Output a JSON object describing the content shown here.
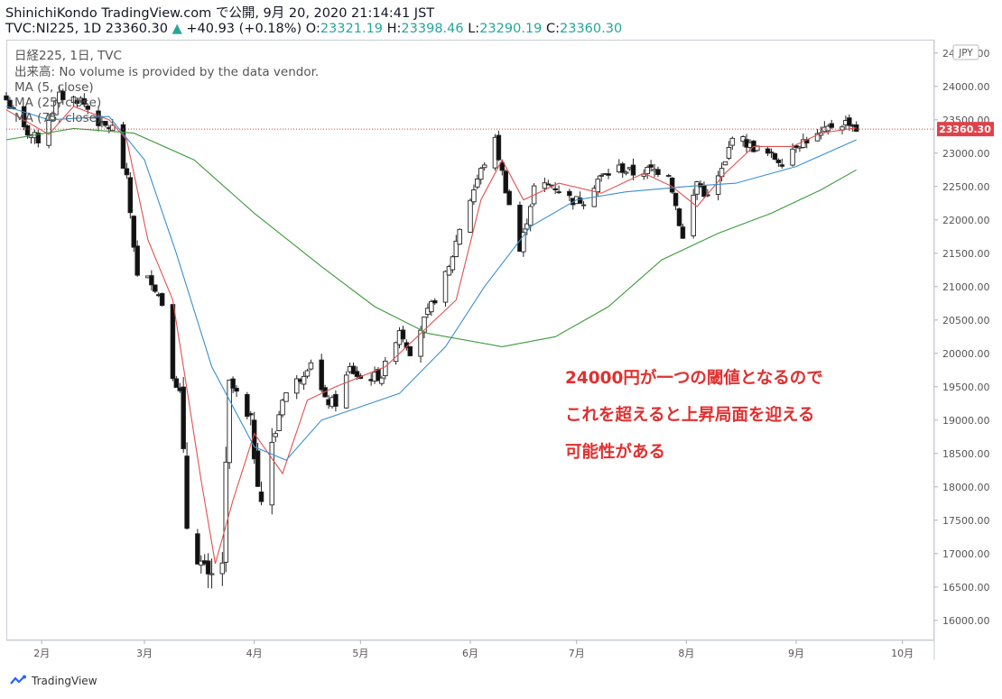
{
  "header": {
    "line1": "ShinichiKondo TradingView.com で公開, 9月 20, 2020 21:14:41 JST",
    "symbol": "TVC:NI225, 1D 23360.30",
    "change": "+40.93 (+0.18%)",
    "o_label": " O:",
    "o": "23321.19",
    "h_label": " H:",
    "h": "23398.46",
    "l_label": " L:",
    "l": "23290.19",
    "c_label": " C:",
    "c": "23360.30"
  },
  "legend": {
    "title": "日経225, 1日, TVC",
    "volume": "出来高: No volume is provided by the data vendor.",
    "ma5": "MA (5, close)",
    "ma25": "MA (25, close)",
    "ma75": "MA (75, close)"
  },
  "currency": "JPY",
  "annotation": {
    "line1": "24000円が一つの閾値となるので",
    "line2": "これを超えると上昇局面を迎える",
    "line3": "可能性がある"
  },
  "footer": {
    "brand": "TradingView"
  },
  "colors": {
    "up": "#26a69a",
    "ma5": "#e25050",
    "ma25": "#3a8fd1",
    "ma75": "#3c9a3c",
    "last_price": "#e0424a",
    "annotation": "#e03030"
  },
  "chart_data": {
    "type": "candlestick",
    "ylim": [
      15700,
      24700
    ],
    "yticks": [
      16000,
      16500,
      17000,
      17500,
      18000,
      18500,
      19000,
      19500,
      20000,
      20500,
      21000,
      21500,
      22000,
      22500,
      23000,
      23500,
      24000,
      24500
    ],
    "ytick_labels": [
      "16000.00",
      "16500.00",
      "17000.00",
      "17500.00",
      "18000.00",
      "18500.00",
      "19000.00",
      "19500.00",
      "20000.00",
      "20500.00",
      "21000.00",
      "21500.00",
      "22000.00",
      "22500.00",
      "23000.00",
      "23500.00",
      "24000.00",
      "24500.00"
    ],
    "x_labels": [
      "2月",
      "3月",
      "4月",
      "5月",
      "6月",
      "7月",
      "8月",
      "9月",
      "10月"
    ],
    "x_label_dates": [
      "2020-02-01",
      "2020-03-01",
      "2020-04-01",
      "2020-05-01",
      "2020-06-01",
      "2020-07-01",
      "2020-08-01",
      "2020-09-01",
      "2020-10-01"
    ],
    "x_range": [
      "2020-01-22",
      "2020-10-10"
    ],
    "last_price": 23360.3,
    "last_price_label": "23360.30",
    "candle_anchors": [
      [
        "2020-01-22",
        23800
      ],
      [
        "2020-01-27",
        23350
      ],
      [
        "2020-01-31",
        23200
      ],
      [
        "2020-02-06",
        23850
      ],
      [
        "2020-02-12",
        23800
      ],
      [
        "2020-02-18",
        23400
      ],
      [
        "2020-02-21",
        23380
      ],
      [
        "2020-02-25",
        22600
      ],
      [
        "2020-02-28",
        21140
      ],
      [
        "2020-03-03",
        21100
      ],
      [
        "2020-03-06",
        20750
      ],
      [
        "2020-03-09",
        19700
      ],
      [
        "2020-03-11",
        19400
      ],
      [
        "2020-03-13",
        17430
      ],
      [
        "2020-03-16",
        17000
      ],
      [
        "2020-03-19",
        16550
      ],
      [
        "2020-03-23",
        16890
      ],
      [
        "2020-03-25",
        19550
      ],
      [
        "2020-03-27",
        19390
      ],
      [
        "2020-03-31",
        18900
      ],
      [
        "2020-04-03",
        17820
      ],
      [
        "2020-04-06",
        18580
      ],
      [
        "2020-04-09",
        19350
      ],
      [
        "2020-04-14",
        19640
      ],
      [
        "2020-04-17",
        19900
      ],
      [
        "2020-04-21",
        19280
      ],
      [
        "2020-04-24",
        19260
      ],
      [
        "2020-04-28",
        19770
      ],
      [
        "2020-05-01",
        19620
      ],
      [
        "2020-05-07",
        19670
      ],
      [
        "2020-05-12",
        20370
      ],
      [
        "2020-05-15",
        20040
      ],
      [
        "2020-05-20",
        20600
      ],
      [
        "2020-05-26",
        21270
      ],
      [
        "2020-05-29",
        21880
      ],
      [
        "2020-06-03",
        22610
      ],
      [
        "2020-06-05",
        22860
      ],
      [
        "2020-06-08",
        23180
      ],
      [
        "2020-06-11",
        22470
      ],
      [
        "2020-06-15",
        21530
      ],
      [
        "2020-06-19",
        22480
      ],
      [
        "2020-06-24",
        22530
      ],
      [
        "2020-06-30",
        22290
      ],
      [
        "2020-07-03",
        22300
      ],
      [
        "2020-07-07",
        22610
      ],
      [
        "2020-07-13",
        22780
      ],
      [
        "2020-07-17",
        22700
      ],
      [
        "2020-07-22",
        22750
      ],
      [
        "2020-07-27",
        22720
      ],
      [
        "2020-07-31",
        21710
      ],
      [
        "2020-08-04",
        22570
      ],
      [
        "2020-08-07",
        22330
      ],
      [
        "2020-08-12",
        22840
      ],
      [
        "2020-08-14",
        23290
      ],
      [
        "2020-08-19",
        23110
      ],
      [
        "2020-08-24",
        22980
      ],
      [
        "2020-08-28",
        22880
      ],
      [
        "2020-09-01",
        23140
      ],
      [
        "2020-09-04",
        23200
      ],
      [
        "2020-09-08",
        23270
      ],
      [
        "2020-09-11",
        23410
      ],
      [
        "2020-09-16",
        23470
      ],
      [
        "2020-09-18",
        23360
      ]
    ],
    "ma_series": [
      {
        "name": "MA (5, close)",
        "points": [
          [
            "2020-01-22",
            23650
          ],
          [
            "2020-02-03",
            23280
          ],
          [
            "2020-02-10",
            23700
          ],
          [
            "2020-02-20",
            23500
          ],
          [
            "2020-02-25",
            23200
          ],
          [
            "2020-03-02",
            21700
          ],
          [
            "2020-03-09",
            20800
          ],
          [
            "2020-03-12",
            19800
          ],
          [
            "2020-03-17",
            18100
          ],
          [
            "2020-03-21",
            16850
          ],
          [
            "2020-03-26",
            17800
          ],
          [
            "2020-04-01",
            18800
          ],
          [
            "2020-04-09",
            18200
          ],
          [
            "2020-04-16",
            19300
          ],
          [
            "2020-04-24",
            19500
          ],
          [
            "2020-05-08",
            19800
          ],
          [
            "2020-05-18",
            20300
          ],
          [
            "2020-05-28",
            20800
          ],
          [
            "2020-06-04",
            22300
          ],
          [
            "2020-06-10",
            22900
          ],
          [
            "2020-06-16",
            22300
          ],
          [
            "2020-06-26",
            22550
          ],
          [
            "2020-07-08",
            22400
          ],
          [
            "2020-07-20",
            22700
          ],
          [
            "2020-07-28",
            22500
          ],
          [
            "2020-08-04",
            22200
          ],
          [
            "2020-08-12",
            22700
          ],
          [
            "2020-08-20",
            23100
          ],
          [
            "2020-08-31",
            23100
          ],
          [
            "2020-09-08",
            23300
          ],
          [
            "2020-09-18",
            23380
          ]
        ]
      },
      {
        "name": "MA (25, close)",
        "points": [
          [
            "2020-01-22",
            23700
          ],
          [
            "2020-02-03",
            23500
          ],
          [
            "2020-02-20",
            23550
          ],
          [
            "2020-03-01",
            22900
          ],
          [
            "2020-03-10",
            21500
          ],
          [
            "2020-03-20",
            19800
          ],
          [
            "2020-04-01",
            18600
          ],
          [
            "2020-04-10",
            18400
          ],
          [
            "2020-04-20",
            19000
          ],
          [
            "2020-05-01",
            19200
          ],
          [
            "2020-05-12",
            19400
          ],
          [
            "2020-05-25",
            20100
          ],
          [
            "2020-06-05",
            21000
          ],
          [
            "2020-06-18",
            21900
          ],
          [
            "2020-07-01",
            22300
          ],
          [
            "2020-07-15",
            22420
          ],
          [
            "2020-08-01",
            22500
          ],
          [
            "2020-08-15",
            22550
          ],
          [
            "2020-09-01",
            22800
          ],
          [
            "2020-09-18",
            23200
          ]
        ]
      },
      {
        "name": "MA (75, close)",
        "points": [
          [
            "2020-01-22",
            23200
          ],
          [
            "2020-02-10",
            23370
          ],
          [
            "2020-02-27",
            23300
          ],
          [
            "2020-03-15",
            22900
          ],
          [
            "2020-04-01",
            22100
          ],
          [
            "2020-04-20",
            21300
          ],
          [
            "2020-05-05",
            20700
          ],
          [
            "2020-05-20",
            20300
          ],
          [
            "2020-06-10",
            20100
          ],
          [
            "2020-06-25",
            20250
          ],
          [
            "2020-07-10",
            20700
          ],
          [
            "2020-07-25",
            21400
          ],
          [
            "2020-08-10",
            21800
          ],
          [
            "2020-08-25",
            22100
          ],
          [
            "2020-09-08",
            22450
          ],
          [
            "2020-09-18",
            22750
          ]
        ]
      }
    ]
  }
}
